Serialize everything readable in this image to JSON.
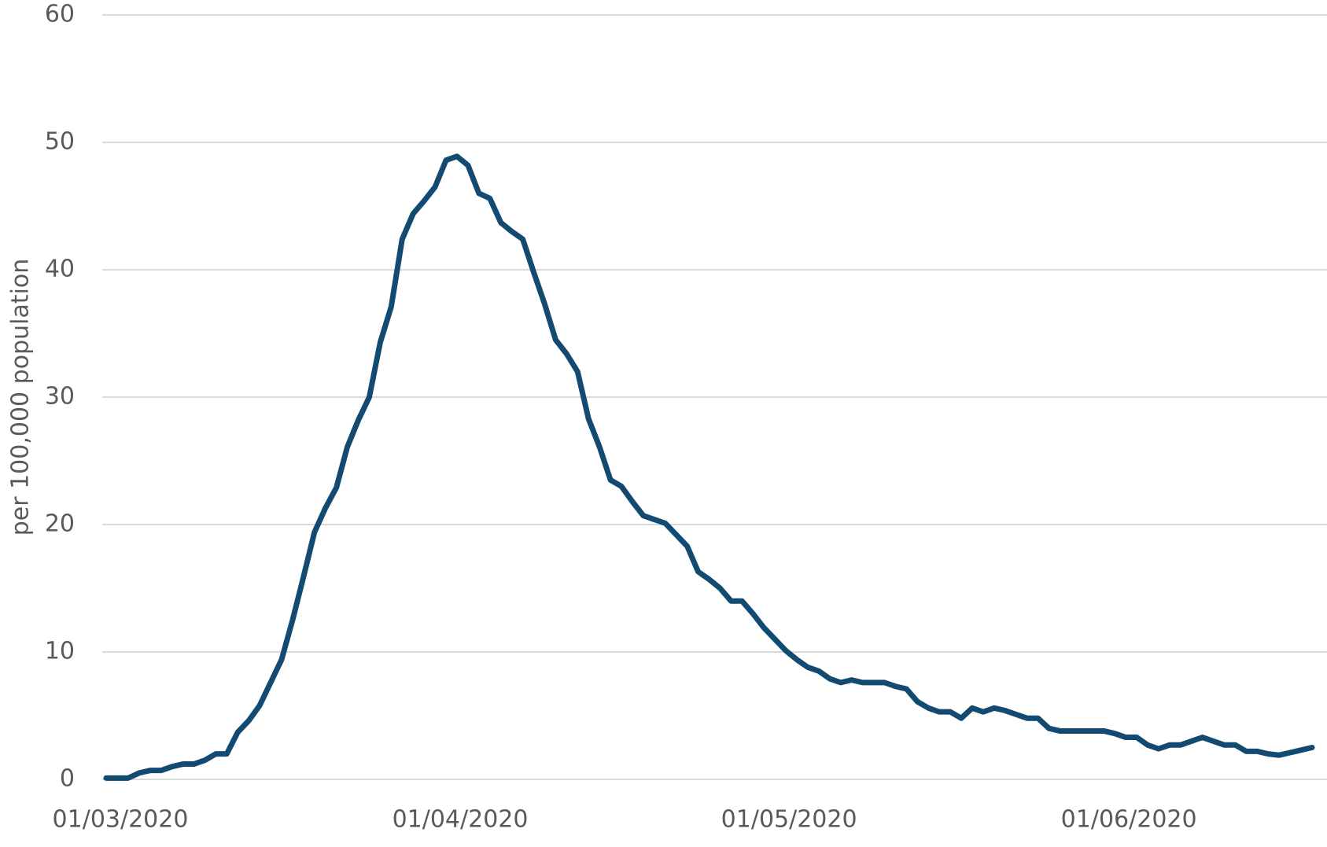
{
  "chart_data": {
    "type": "line",
    "y_label": "per 100,000 population",
    "categories": [
      "01/03/2020",
      null,
      null,
      null,
      null,
      null,
      null,
      null,
      null,
      null,
      null,
      null,
      null,
      null,
      null,
      null,
      null,
      null,
      null,
      null,
      null,
      null,
      null,
      null,
      null,
      null,
      null,
      null,
      null,
      null,
      null,
      "01/04/2020",
      null,
      null,
      null,
      null,
      null,
      null,
      null,
      null,
      null,
      null,
      null,
      null,
      null,
      null,
      null,
      null,
      null,
      null,
      null,
      null,
      null,
      null,
      null,
      null,
      null,
      null,
      null,
      null,
      null,
      "01/05/2020",
      null,
      null,
      null,
      null,
      null,
      null,
      null,
      null,
      null,
      null,
      null,
      null,
      null,
      null,
      null,
      null,
      null,
      null,
      null,
      null,
      null,
      null,
      null,
      null,
      null,
      null,
      null,
      null,
      null,
      null,
      "01/06/2020",
      null,
      null,
      null,
      null,
      null,
      null,
      null,
      null,
      null,
      null,
      null,
      null,
      null,
      null,
      null,
      null,
      null,
      null
    ],
    "values": [
      0.1,
      0.1,
      0.1,
      0.5,
      0.7,
      0.7,
      1.0,
      1.2,
      1.2,
      1.5,
      2.0,
      2.0,
      3.7,
      4.6,
      5.8,
      7.6,
      9.4,
      12.5,
      15.9,
      19.4,
      21.3,
      22.9,
      26.1,
      28.2,
      30.0,
      34.3,
      37.1,
      42.4,
      44.4,
      45.4,
      46.5,
      48.6,
      48.9,
      48.2,
      46.0,
      45.6,
      43.7,
      43.0,
      42.4,
      39.8,
      37.3,
      34.5,
      33.4,
      32.0,
      28.3,
      26.1,
      23.5,
      23.0,
      21.8,
      20.7,
      20.4,
      20.1,
      19.2,
      18.3,
      16.3,
      15.7,
      15.0,
      14.0,
      14.0,
      13.0,
      11.9,
      11.0,
      10.1,
      9.4,
      8.8,
      8.5,
      7.9,
      7.6,
      7.8,
      7.6,
      7.6,
      7.6,
      7.3,
      7.1,
      6.1,
      5.6,
      5.3,
      5.3,
      4.8,
      5.6,
      5.3,
      5.6,
      5.4,
      5.1,
      4.8,
      4.8,
      4.0,
      3.8,
      3.8,
      3.8,
      3.8,
      3.8,
      3.6,
      3.3,
      3.3,
      2.7,
      2.4,
      2.7,
      2.7,
      3.0,
      3.3,
      3.0,
      2.7,
      2.7,
      2.2,
      2.2,
      2.0,
      1.9,
      2.1,
      2.3,
      2.5
    ],
    "color": "#134a72",
    "ylim": [
      0,
      60
    ],
    "yticks": [
      0,
      10,
      20,
      30,
      40,
      50,
      60
    ],
    "grid": true
  }
}
